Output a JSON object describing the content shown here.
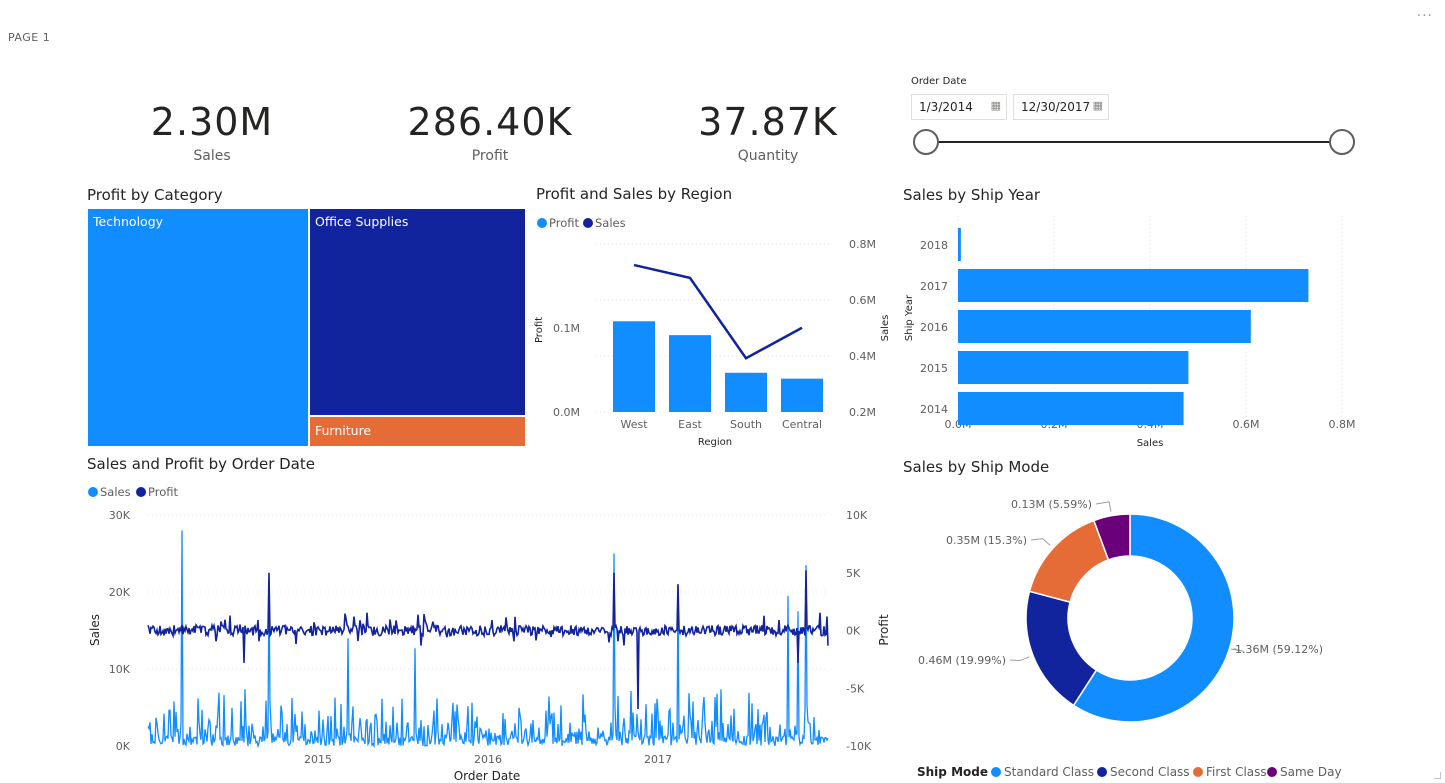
{
  "page": {
    "label": "PAGE 1",
    "more": "···"
  },
  "kpis": [
    {
      "value": "2.30M",
      "label": "Sales"
    },
    {
      "value": "286.40K",
      "label": "Profit"
    },
    {
      "value": "37.87K",
      "label": "Quantity"
    }
  ],
  "slicer": {
    "title": "Order Date",
    "start": "1/3/2014",
    "end": "12/30/2017",
    "icon": "calendar-icon"
  },
  "colors": {
    "blue": "#118dff",
    "navy": "#12239e",
    "orange": "#e66c37",
    "purple": "#6b007b"
  },
  "treemap": {
    "title": "Profit by Category",
    "items": [
      {
        "label": "Technology",
        "color": "#118dff"
      },
      {
        "label": "Office Supplies",
        "color": "#12239e"
      },
      {
        "label": "Furniture",
        "color": "#e66c37"
      }
    ]
  },
  "region_chart": {
    "title": "Profit and Sales by Region",
    "legend": [
      "Profit",
      "Sales"
    ],
    "xlabel": "Region",
    "y_left_label": "Profit",
    "y_right_label": "Sales",
    "y_left_ticks": [
      "0.0M",
      "0.1M"
    ],
    "y_right_ticks": [
      "0.2M",
      "0.4M",
      "0.6M",
      "0.8M"
    ]
  },
  "ship_year_chart": {
    "title": "Sales by Ship Year",
    "ylabel": "Ship Year",
    "xlabel": "Sales",
    "x_ticks": [
      "0.0M",
      "0.2M",
      "0.4M",
      "0.6M",
      "0.8M"
    ]
  },
  "timeseries": {
    "title": "Sales and Profit by Order Date",
    "legend": [
      "Sales",
      "Profit"
    ],
    "xlabel": "Order Date",
    "y_left_label": "Sales",
    "y_right_label": "Profit",
    "y_left_ticks": [
      "30K",
      "20K",
      "10K",
      "0K"
    ],
    "y_right_ticks": [
      "10K",
      "5K",
      "0K",
      "-5K",
      "-10K"
    ],
    "x_ticks": [
      "2015",
      "2016",
      "2017"
    ]
  },
  "ship_mode_chart": {
    "title": "Sales by Ship Mode",
    "legend_title": "Ship Mode"
  },
  "chart_data": [
    {
      "type": "treemap",
      "title": "Profit by Category",
      "categories": [
        "Technology",
        "Office Supplies",
        "Furniture"
      ],
      "values": [
        145450,
        122490,
        18450
      ]
    },
    {
      "type": "bar+line",
      "title": "Profit and Sales by Region",
      "categories": [
        "West",
        "East",
        "South",
        "Central"
      ],
      "series": [
        {
          "name": "Profit",
          "type": "bar",
          "axis": "left",
          "values": [
            108000,
            91500,
            46700,
            39700
          ]
        },
        {
          "name": "Sales",
          "type": "line",
          "axis": "right",
          "values": [
            725000,
            679000,
            392000,
            501000
          ]
        }
      ],
      "xlabel": "Region",
      "ylim_left": [
        0,
        0.2
      ],
      "ylim_right": [
        0.2,
        0.8
      ]
    },
    {
      "type": "bar",
      "orientation": "horizontal",
      "title": "Sales by Ship Year",
      "categories": [
        "2018",
        "2017",
        "2016",
        "2015",
        "2014"
      ],
      "values": [
        0.006,
        0.73,
        0.61,
        0.48,
        0.47
      ],
      "xlim": [
        0,
        0.8
      ],
      "xlabel": "Sales",
      "ylabel": "Ship Year"
    },
    {
      "type": "line",
      "title": "Sales and Profit by Order Date",
      "x": [
        "2014-01",
        "2018-01"
      ],
      "series": [
        {
          "name": "Sales",
          "axis": "left",
          "typical_range": [
            0,
            5000
          ],
          "peak": 28000
        },
        {
          "name": "Profit",
          "axis": "right",
          "typical_range": [
            -1000,
            1000
          ],
          "peaks": [
            5000,
            -5000
          ]
        }
      ],
      "ylim_left": [
        0,
        30000
      ],
      "ylim_right": [
        -10000,
        10000
      ]
    },
    {
      "type": "pie",
      "donut": true,
      "title": "Sales by Ship Mode",
      "categories": [
        "Standard Class",
        "Second Class",
        "First Class",
        "Same Day"
      ],
      "values": [
        1.36,
        0.46,
        0.35,
        0.13
      ],
      "percents": [
        59.12,
        19.99,
        15.3,
        5.59
      ],
      "labels": [
        "1.36M (59.12%)",
        "0.46M (19.99%)",
        "0.35M (15.3%)",
        "0.13M (5.59%)"
      ]
    }
  ]
}
